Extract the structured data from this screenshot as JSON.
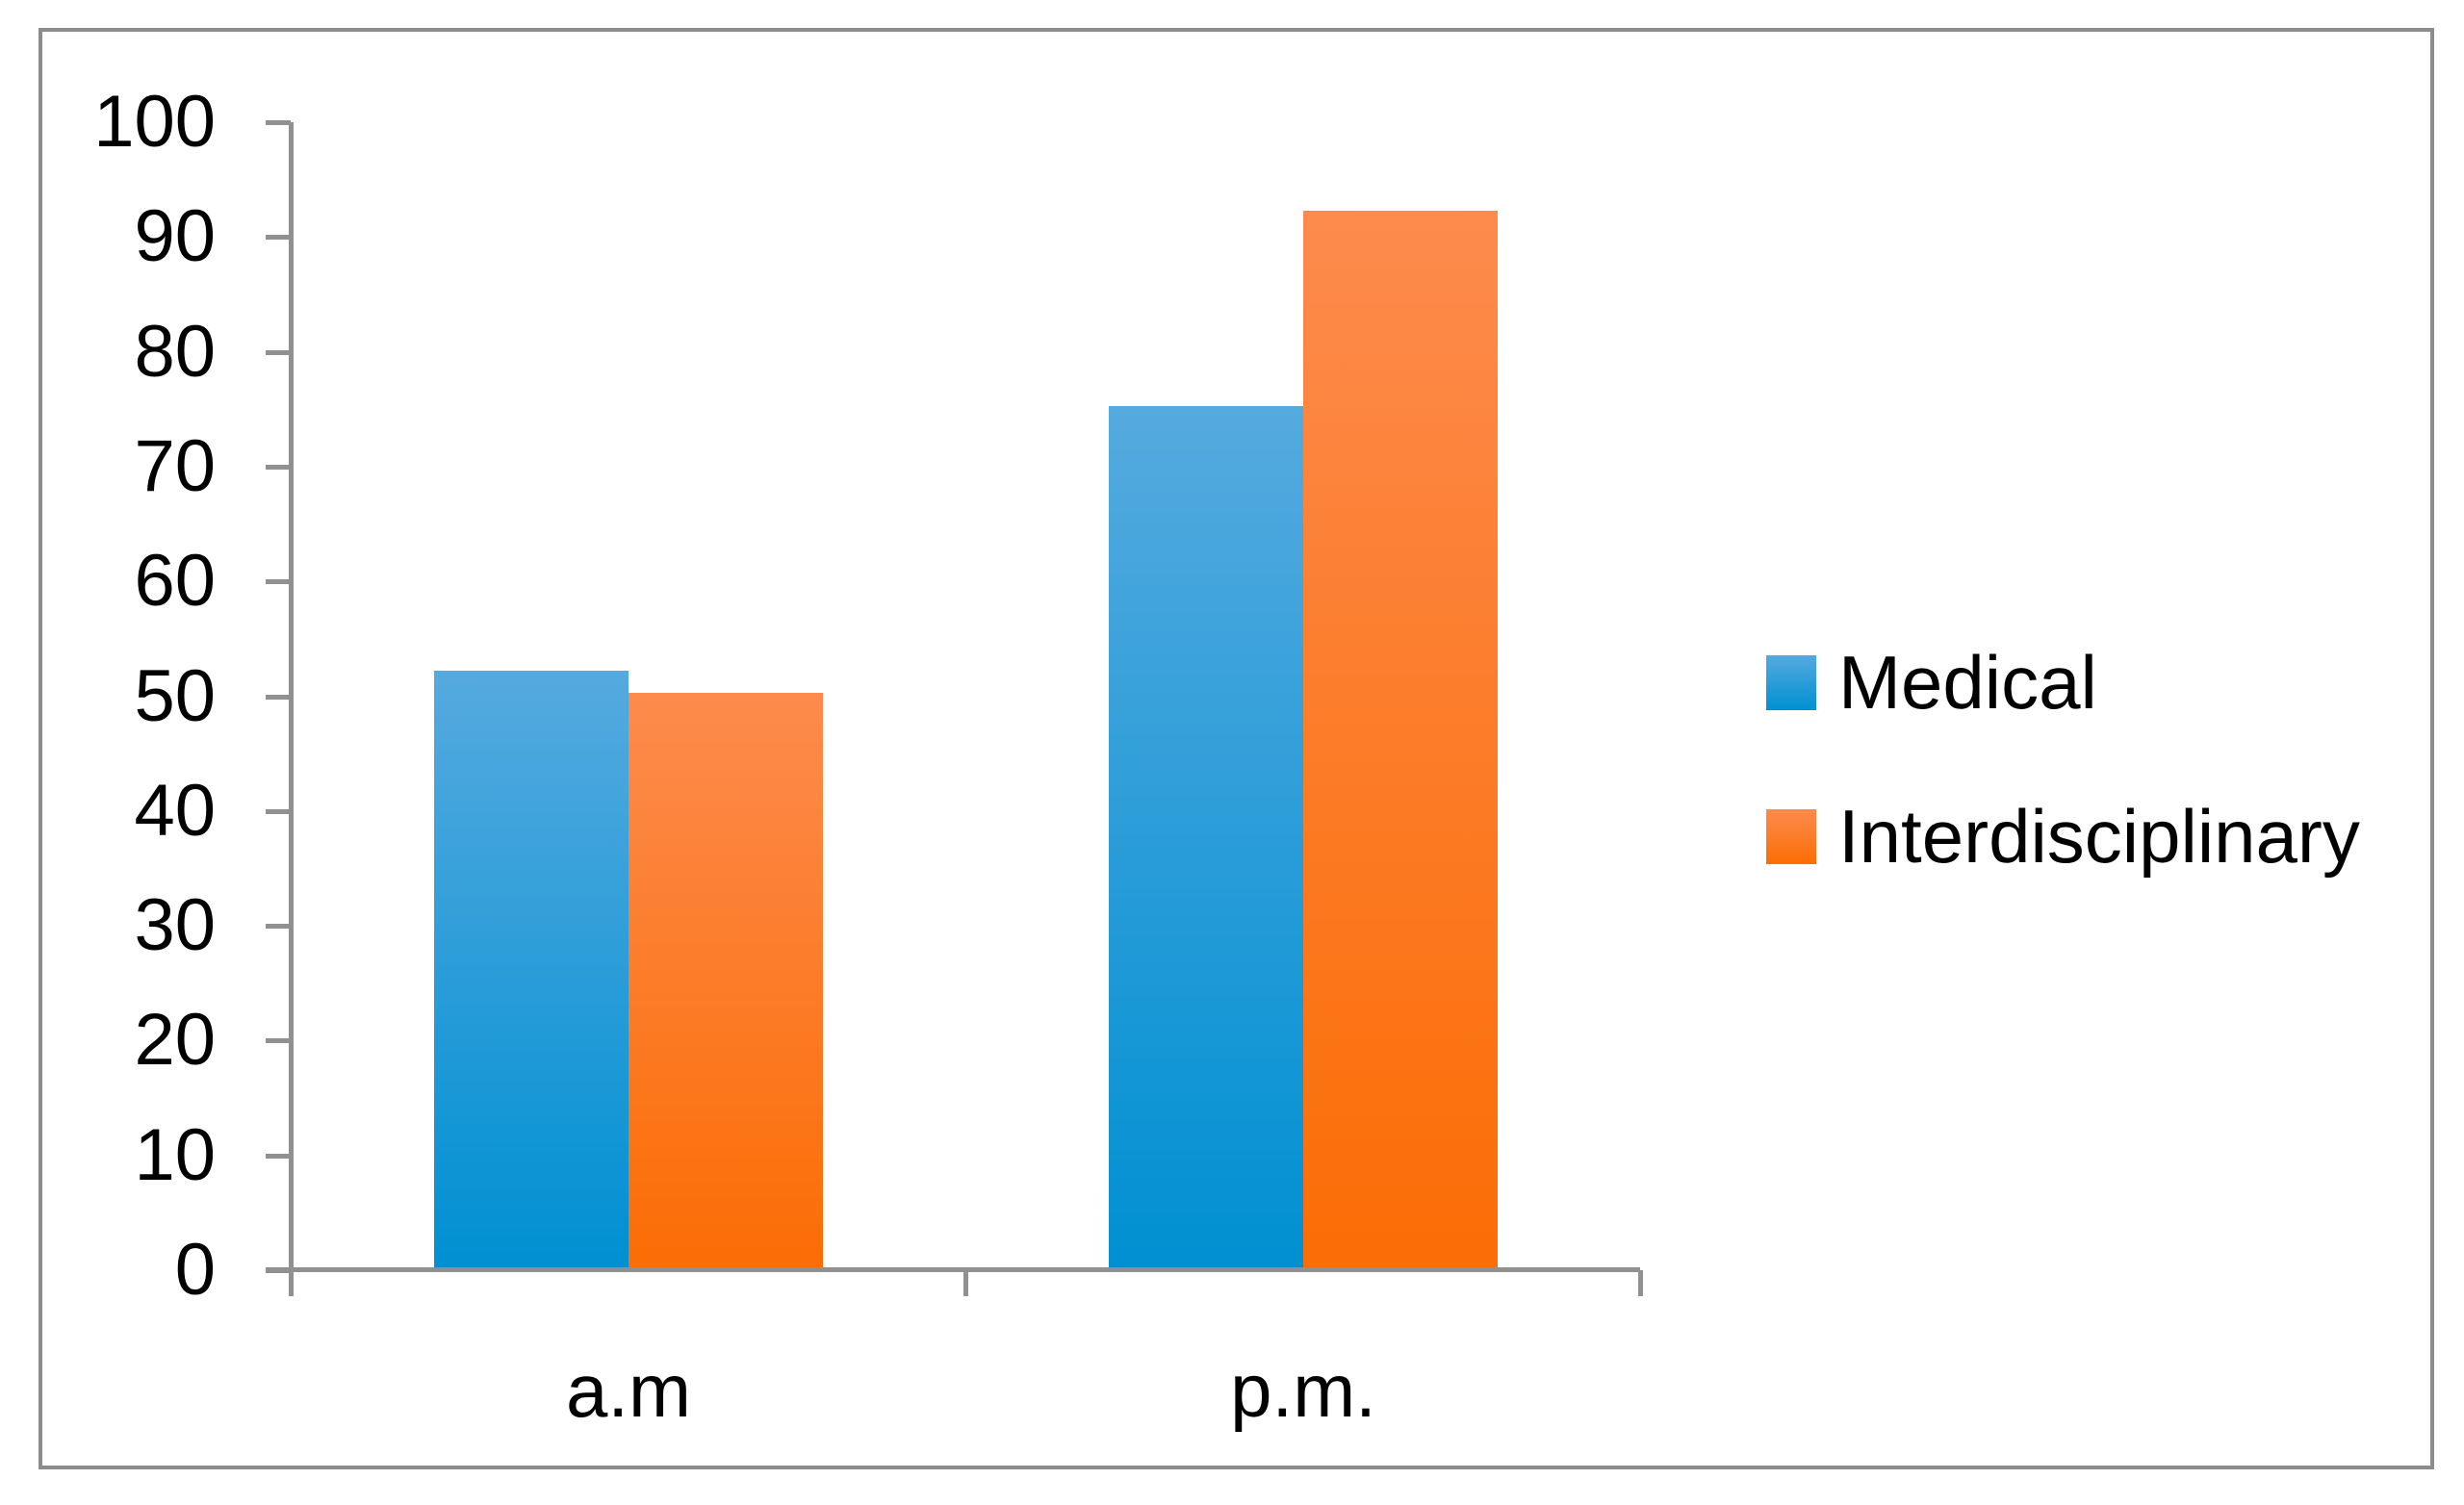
{
  "chart_data": {
    "type": "bar",
    "title": "",
    "categories": [
      "a.m",
      "p.m."
    ],
    "series": [
      {
        "name": "Medical",
        "color_top": "#55aadf",
        "color_bottom": "#0090d2",
        "values": [
          52,
          75
        ]
      },
      {
        "name": "Interdisciplinary",
        "color_top": "#fd8b4d",
        "color_bottom": "#fb6d05",
        "values": [
          50,
          92
        ]
      }
    ],
    "y_axis": {
      "min": 0,
      "max": 100,
      "step": 10,
      "tick_labels": [
        "0",
        "10",
        "20",
        "30",
        "40",
        "50",
        "60",
        "70",
        "80",
        "90",
        "100"
      ]
    },
    "x_axis": {
      "tick_labels": [
        "a.m",
        "p.m."
      ]
    },
    "legend_position": "right",
    "grid": false
  },
  "colors": {
    "axis": "#909090",
    "frame_border": "#8c8c8c",
    "text": "#000000",
    "background": "#ffffff"
  }
}
